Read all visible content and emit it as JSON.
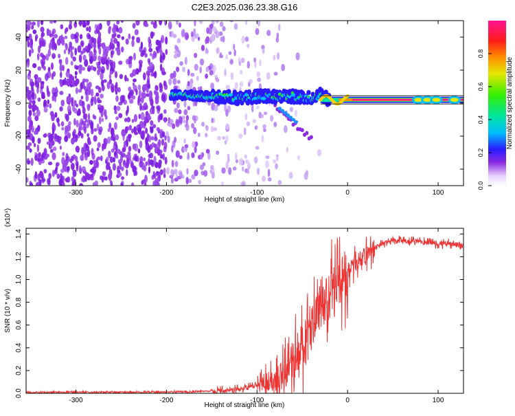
{
  "title": "C2E3.2025.036.23.38.G16",
  "chart_data": [
    {
      "type": "heatmap",
      "xlabel": "Height of straight line (km)",
      "ylabel": "Frequency (Hz)",
      "xlim": [
        -355,
        128
      ],
      "ylim": [
        -50,
        50
      ],
      "x_ticks": [
        -300,
        -200,
        -100,
        0,
        100
      ],
      "y_ticks": [
        -40,
        -20,
        0,
        20,
        40
      ],
      "colorbar": {
        "label": "Normalized spectral amplitude",
        "range": [
          0,
          1
        ],
        "ticks": [
          0.0,
          0.2,
          0.4,
          0.6,
          0.8
        ]
      },
      "signal_track": [
        {
          "x": -195,
          "freq": 5
        },
        {
          "x": -180,
          "freq": 5
        },
        {
          "x": -160,
          "freq": 4
        },
        {
          "x": -140,
          "freq": 4
        },
        {
          "x": -120,
          "freq": 3
        },
        {
          "x": -100,
          "freq": 4
        },
        {
          "x": -80,
          "freq": 4
        },
        {
          "x": -60,
          "freq": 4
        },
        {
          "x": -40,
          "freq": 3
        },
        {
          "x": -30,
          "freq": 5
        },
        {
          "x": -20,
          "freq": 2
        },
        {
          "x": -10,
          "freq": 2
        },
        {
          "x": 0,
          "freq": 2
        },
        {
          "x": 30,
          "freq": 2
        },
        {
          "x": 60,
          "freq": 2
        },
        {
          "x": 90,
          "freq": 2
        },
        {
          "x": 128,
          "freq": 2
        }
      ]
    },
    {
      "type": "line",
      "xlabel": "Height of straight line (km)",
      "ylabel": "SNR (10 * v/v)",
      "y_multiplier": "(x10⁴)",
      "xlim": [
        -355,
        128
      ],
      "ylim": [
        0,
        1.45
      ],
      "x_ticks": [
        -300,
        -200,
        -100,
        0,
        100
      ],
      "y_ticks": [
        0.0,
        0.2,
        0.4,
        0.6,
        0.8,
        1.0,
        1.2,
        1.4
      ],
      "series": [
        {
          "color": "#ee3333",
          "x": [
            -355,
            -300,
            -250,
            -200,
            -170,
            -150,
            -130,
            -110,
            -100,
            -90,
            -80,
            -70,
            -60,
            -50,
            -40,
            -30,
            -20,
            -10,
            0,
            10,
            20,
            30,
            40,
            50,
            60,
            70,
            80,
            90,
            100,
            110,
            120,
            128
          ],
          "y": [
            0.01,
            0.01,
            0.01,
            0.012,
            0.015,
            0.02,
            0.03,
            0.05,
            0.07,
            0.1,
            0.13,
            0.18,
            0.25,
            0.38,
            0.55,
            0.72,
            0.86,
            0.97,
            1.07,
            1.15,
            1.22,
            1.28,
            1.32,
            1.34,
            1.34,
            1.33,
            1.33,
            1.32,
            1.32,
            1.31,
            1.31,
            1.29
          ]
        }
      ]
    }
  ]
}
